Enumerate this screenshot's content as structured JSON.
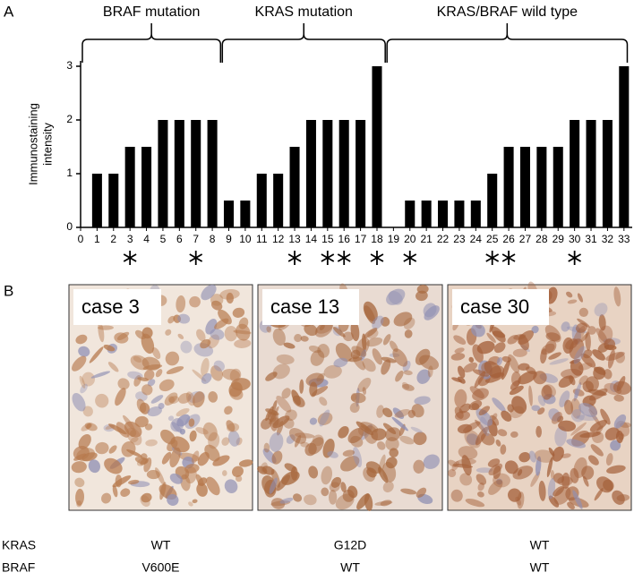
{
  "panel_labels": [
    "A",
    "B"
  ],
  "chart_data": {
    "type": "bar",
    "y_label": [
      "Immunostaining",
      "intensity"
    ],
    "x": [
      1,
      2,
      3,
      4,
      5,
      6,
      7,
      8,
      9,
      10,
      11,
      12,
      13,
      14,
      15,
      16,
      17,
      18,
      19,
      20,
      21,
      22,
      23,
      24,
      25,
      26,
      27,
      28,
      29,
      30,
      31,
      32,
      33
    ],
    "values": [
      1,
      1,
      1.5,
      1.5,
      2,
      2,
      2,
      2,
      0.5,
      0.5,
      1,
      1,
      1.5,
      2,
      2,
      2,
      2,
      3,
      0,
      0.5,
      0.5,
      0.5,
      0.5,
      0.5,
      1,
      1.5,
      1.5,
      1.5,
      1.5,
      2,
      2,
      2,
      3
    ],
    "color": "#000000",
    "xlim": [
      0,
      33.5
    ],
    "xticks": [
      0,
      1,
      2,
      3,
      4,
      5,
      6,
      7,
      8,
      9,
      10,
      11,
      12,
      13,
      14,
      15,
      16,
      17,
      18,
      19,
      20,
      21,
      22,
      23,
      24,
      25,
      26,
      27,
      28,
      29,
      30,
      31,
      32,
      33
    ],
    "ylim": [
      0,
      3.1
    ],
    "yticks": [
      0,
      1,
      2,
      3
    ],
    "groups": [
      {
        "label": "BRAF mutation",
        "cases": [
          0,
          8.5
        ]
      },
      {
        "label": "KRAS mutation",
        "cases": [
          8.5,
          18.5
        ]
      },
      {
        "label": "KRAS/BRAF wild type",
        "cases": [
          18.5,
          33.2
        ]
      }
    ],
    "starred_cases": [
      3,
      7,
      13,
      15,
      16,
      18,
      20,
      25,
      26,
      30
    ]
  },
  "panel_b": {
    "row_labels": [
      "KRAS",
      "BRAF"
    ],
    "cases": [
      {
        "label": "case 3",
        "KRAS": "WT",
        "BRAF": "V600E"
      },
      {
        "label": "case 13",
        "KRAS": "G12D",
        "BRAF": "WT"
      },
      {
        "label": "case 30",
        "KRAS": "WT",
        "BRAF": "WT"
      }
    ]
  }
}
